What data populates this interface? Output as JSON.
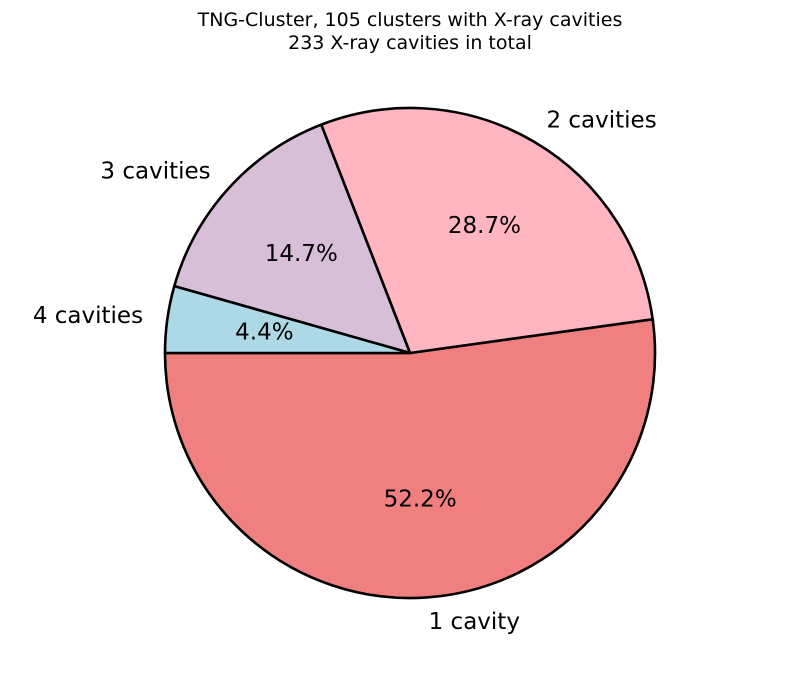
{
  "chart_data": {
    "type": "pie",
    "title_line1": "TNG-Cluster, 105 clusters with X-ray cavities",
    "title_line2": "233 X-ray cavities in total",
    "slices": [
      {
        "label": "1 cavity",
        "value": 52.2,
        "pct_text": "52.2%",
        "color": "#F08080"
      },
      {
        "label": "2 cavities",
        "value": 28.7,
        "pct_text": "28.7%",
        "color": "#FFB6C1"
      },
      {
        "label": "3 cavities",
        "value": 14.7,
        "pct_text": "14.7%",
        "color": "#D8BFD8"
      },
      {
        "label": "4 cavities",
        "value": 4.4,
        "pct_text": "4.4%",
        "color": "#ADD8E6"
      }
    ],
    "start_angle_deg": 180,
    "direction": "counterclockwise",
    "edge_color": "#000000"
  }
}
